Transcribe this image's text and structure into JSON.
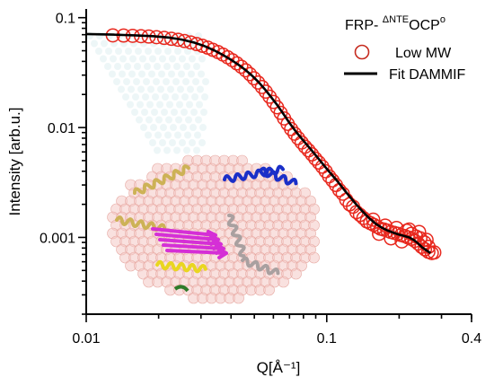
{
  "chart_data": {
    "type": "scatter",
    "title": "",
    "xlabel": "Q[Å⁻¹]",
    "ylabel": "Intensity [arb.u.]",
    "xscale": "log",
    "yscale": "log",
    "xlim": [
      0.01,
      0.4
    ],
    "ylim": [
      0.0002,
      0.12
    ],
    "x_ticks": [
      {
        "value": 0.01,
        "label": "0.01"
      },
      {
        "value": 0.1,
        "label": "0.1"
      },
      {
        "value": 0.4,
        "label": "0.4"
      }
    ],
    "y_ticks": [
      {
        "value": 0.001,
        "label": "0.001"
      },
      {
        "value": 0.01,
        "label": "0.01"
      },
      {
        "value": 0.1,
        "label": "0.1"
      }
    ],
    "legend": {
      "placement": "top-right",
      "title_main": "FRP- ",
      "title_sup": "ΔNTE",
      "title_main2": "OCP",
      "title_sup2": "o"
    },
    "series": [
      {
        "name": "Low MW",
        "kind": "markers",
        "color": "#e8281e",
        "points": [
          [
            0.0129,
            0.069
          ],
          [
            0.0143,
            0.0688
          ],
          [
            0.0156,
            0.0684
          ],
          [
            0.0169,
            0.0679
          ],
          [
            0.0182,
            0.0673
          ],
          [
            0.0196,
            0.0665
          ],
          [
            0.0211,
            0.0655
          ],
          [
            0.0226,
            0.0643
          ],
          [
            0.0241,
            0.0629
          ],
          [
            0.0256,
            0.0613
          ],
          [
            0.0272,
            0.0595
          ],
          [
            0.0288,
            0.0575
          ],
          [
            0.0304,
            0.0555
          ],
          [
            0.032,
            0.0533
          ],
          [
            0.0336,
            0.051
          ],
          [
            0.0353,
            0.0486
          ],
          [
            0.037,
            0.0461
          ],
          [
            0.0387,
            0.0436
          ],
          [
            0.0405,
            0.041
          ],
          [
            0.0423,
            0.0384
          ],
          [
            0.0441,
            0.0358
          ],
          [
            0.046,
            0.0332
          ],
          [
            0.0479,
            0.0306
          ],
          [
            0.0498,
            0.0281
          ],
          [
            0.0518,
            0.0257
          ],
          [
            0.0538,
            0.0234
          ],
          [
            0.0558,
            0.0212
          ],
          [
            0.0579,
            0.0191
          ],
          [
            0.06,
            0.0171
          ],
          [
            0.0621,
            0.0153
          ],
          [
            0.0643,
            0.0136
          ],
          [
            0.0665,
            0.0121
          ],
          [
            0.0688,
            0.0108
          ],
          [
            0.0711,
            0.0097
          ],
          [
            0.0735,
            0.0088
          ],
          [
            0.076,
            0.008
          ],
          [
            0.0786,
            0.0073
          ],
          [
            0.0812,
            0.0067
          ],
          [
            0.084,
            0.0062
          ],
          [
            0.0868,
            0.0057
          ],
          [
            0.0897,
            0.0052
          ],
          [
            0.0927,
            0.0048
          ],
          [
            0.0958,
            0.0044
          ],
          [
            0.099,
            0.004
          ],
          [
            0.1023,
            0.0036
          ],
          [
            0.1057,
            0.0033
          ],
          [
            0.1092,
            0.003
          ],
          [
            0.1128,
            0.0027
          ],
          [
            0.1166,
            0.0025
          ],
          [
            0.1205,
            0.0022
          ],
          [
            0.1245,
            0.002
          ],
          [
            0.1287,
            0.0019
          ],
          [
            0.133,
            0.0017
          ],
          [
            0.1375,
            0.0016
          ],
          [
            0.1421,
            0.0015
          ],
          [
            0.1468,
            0.0014
          ],
          [
            0.1517,
            0.00135
          ],
          [
            0.1568,
            0.0013
          ],
          [
            0.162,
            0.00125
          ],
          [
            0.1674,
            0.0012
          ],
          [
            0.173,
            0.00118
          ],
          [
            0.1788,
            0.00115
          ],
          [
            0.1847,
            0.00112
          ],
          [
            0.1909,
            0.0011
          ],
          [
            0.1972,
            0.00108
          ],
          [
            0.2038,
            0.00105
          ],
          [
            0.2106,
            0.00103
          ],
          [
            0.2176,
            0.001
          ],
          [
            0.2248,
            0.00097
          ],
          [
            0.2322,
            0.00093
          ],
          [
            0.2399,
            0.00088
          ],
          [
            0.2479,
            0.00082
          ],
          [
            0.2561,
            0.00078
          ],
          [
            0.2646,
            0.00074
          ],
          [
            0.2734,
            0.00072
          ],
          [
            0.28,
            0.00073
          ],
          [
            0.156,
            0.00145
          ],
          [
            0.165,
            0.00108
          ],
          [
            0.175,
            0.00128
          ],
          [
            0.185,
            0.00098
          ],
          [
            0.195,
            0.00122
          ],
          [
            0.205,
            0.00092
          ],
          [
            0.215,
            0.00115
          ],
          [
            0.225,
            0.00108
          ],
          [
            0.235,
            0.00102
          ],
          [
            0.245,
            0.00098
          ],
          [
            0.255,
            0.0009
          ],
          [
            0.265,
            0.00082
          ],
          [
            0.22,
            0.00118
          ],
          [
            0.242,
            0.00112
          ],
          [
            0.26,
            0.00095
          ]
        ]
      },
      {
        "name": "Fit DAMMIF",
        "kind": "line",
        "color": "#000000",
        "points": [
          [
            0.01,
            0.071
          ],
          [
            0.013,
            0.07
          ],
          [
            0.016,
            0.069
          ],
          [
            0.019,
            0.0678
          ],
          [
            0.022,
            0.066
          ],
          [
            0.025,
            0.0632
          ],
          [
            0.028,
            0.0595
          ],
          [
            0.031,
            0.0552
          ],
          [
            0.034,
            0.0505
          ],
          [
            0.037,
            0.0458
          ],
          [
            0.04,
            0.0414
          ],
          [
            0.043,
            0.0372
          ],
          [
            0.046,
            0.0333
          ],
          [
            0.049,
            0.0296
          ],
          [
            0.052,
            0.026
          ],
          [
            0.055,
            0.0226
          ],
          [
            0.058,
            0.0196
          ],
          [
            0.062,
            0.0162
          ],
          [
            0.066,
            0.0133
          ],
          [
            0.07,
            0.011
          ],
          [
            0.075,
            0.009
          ],
          [
            0.08,
            0.0076
          ],
          [
            0.085,
            0.0065
          ],
          [
            0.09,
            0.0056
          ],
          [
            0.096,
            0.0047
          ],
          [
            0.102,
            0.004
          ],
          [
            0.11,
            0.0033
          ],
          [
            0.12,
            0.0026
          ],
          [
            0.13,
            0.0021
          ],
          [
            0.14,
            0.00175
          ],
          [
            0.15,
            0.0015
          ],
          [
            0.16,
            0.00133
          ],
          [
            0.17,
            0.00122
          ],
          [
            0.18,
            0.00115
          ],
          [
            0.19,
            0.0011
          ],
          [
            0.2,
            0.00106
          ],
          [
            0.21,
            0.00103
          ],
          [
            0.22,
            0.001
          ],
          [
            0.23,
            0.00095
          ],
          [
            0.24,
            0.00088
          ],
          [
            0.25,
            0.00081
          ],
          [
            0.26,
            0.00076
          ],
          [
            0.27,
            0.00072
          ]
        ]
      }
    ]
  }
}
